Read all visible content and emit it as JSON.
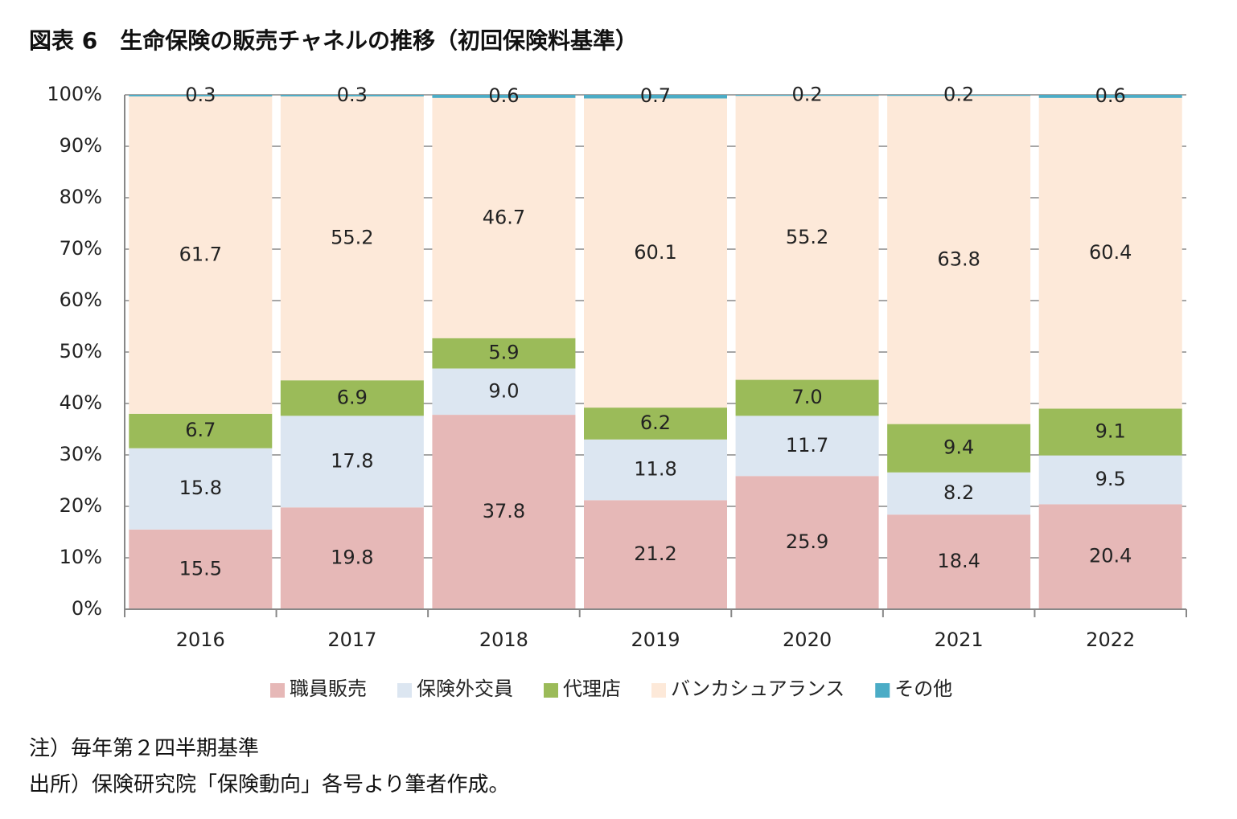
{
  "chart_data": {
    "type": "stacked_bar",
    "title": "図表 6　生命保険の販売チャネルの推移（初回保険料基準）",
    "categories": [
      "2016",
      "2017",
      "2018",
      "2019",
      "2020",
      "2021",
      "2022"
    ],
    "series": [
      {
        "name": "職員販売",
        "color": "#e6b8b7",
        "values": [
          15.5,
          19.8,
          37.8,
          21.2,
          25.9,
          18.4,
          20.4
        ]
      },
      {
        "name": "保険外交員",
        "color": "#dce6f1",
        "values": [
          15.8,
          17.8,
          9.0,
          11.8,
          11.7,
          8.2,
          9.5
        ],
        "value_labels": [
          "15.8",
          "17.8",
          "9.0",
          "11.8",
          "11.7",
          "8.2",
          "9.5"
        ]
      },
      {
        "name": "代理店",
        "color": "#9bbb59",
        "values": [
          6.7,
          6.9,
          5.9,
          6.2,
          7.0,
          9.4,
          9.1
        ],
        "value_labels": [
          "6.7",
          "6.9",
          "5.9",
          "6.2",
          "7.0",
          "9.4",
          "9.1"
        ]
      },
      {
        "name": "バンカシュアランス",
        "color": "#fde9d9",
        "values": [
          61.7,
          55.2,
          46.7,
          60.1,
          55.2,
          63.8,
          60.4
        ]
      },
      {
        "name": "その他",
        "color": "#4bacc6",
        "values": [
          0.3,
          0.3,
          0.6,
          0.7,
          0.2,
          0.2,
          0.6
        ]
      }
    ],
    "ylim": [
      0,
      100
    ],
    "yticks": [
      {
        "value": 0,
        "label": "0%"
      },
      {
        "value": 10,
        "label": "10%"
      },
      {
        "value": 20,
        "label": "20%"
      },
      {
        "value": 30,
        "label": "30%"
      },
      {
        "value": 40,
        "label": "40%"
      },
      {
        "value": 50,
        "label": "50%"
      },
      {
        "value": 60,
        "label": "60%"
      },
      {
        "value": 70,
        "label": "70%"
      },
      {
        "value": 80,
        "label": "80%"
      },
      {
        "value": 90,
        "label": "90%"
      },
      {
        "value": 100,
        "label": "100%"
      }
    ],
    "grid": true,
    "legend": "bottom",
    "notes": [
      "注）毎年第２四半期基準",
      "出所）保険研究院「保険動向」各号より筆者作成。"
    ]
  }
}
